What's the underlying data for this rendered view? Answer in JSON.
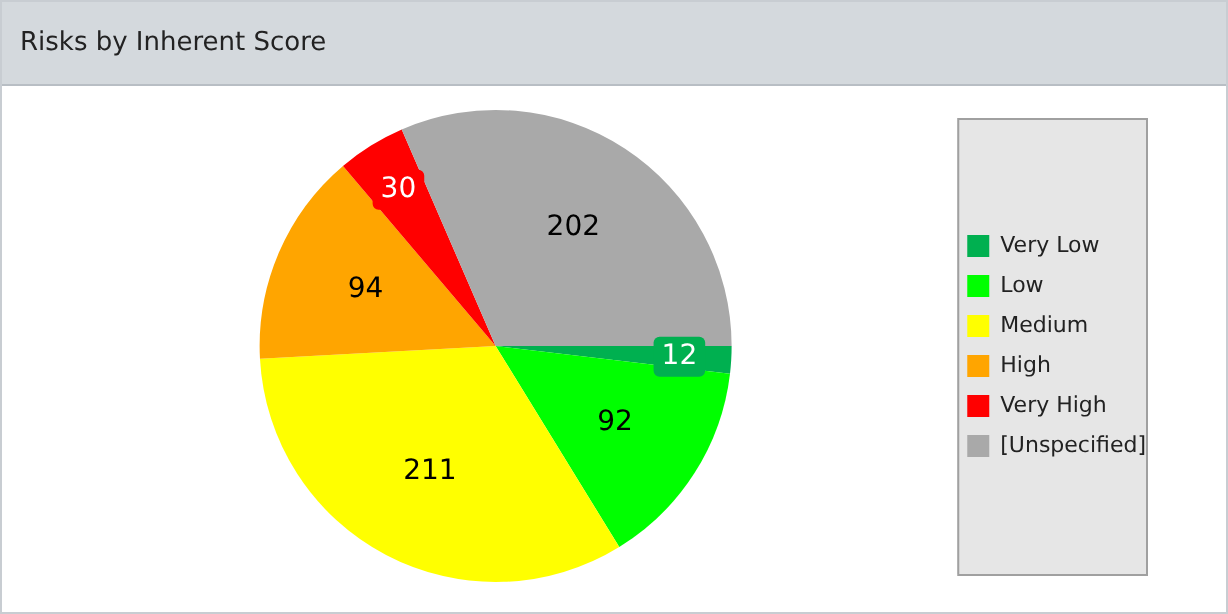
{
  "chart_data": {
    "type": "pie",
    "title": "Risks by Inherent Score",
    "categories": [
      "Very Low",
      "Low",
      "Medium",
      "High",
      "Very High",
      "[Unspecified]"
    ],
    "values": [
      12,
      92,
      211,
      94,
      30,
      202
    ],
    "colors": [
      "#00b050",
      "#00ff00",
      "#ffff00",
      "#ffa500",
      "#ff0000",
      "#a9a9a9"
    ],
    "data_labels": true,
    "legend": "right"
  }
}
